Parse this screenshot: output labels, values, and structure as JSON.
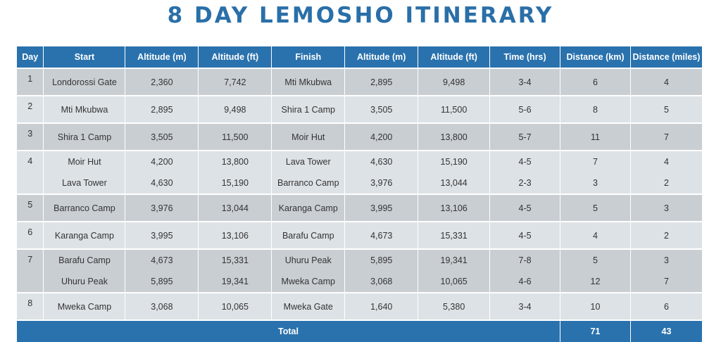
{
  "title": "8 DAY LEMOSHO ITINERARY",
  "headers": [
    "Day",
    "Start",
    "Altitude (m)",
    "Altitude (ft)",
    "Finish",
    "Altitude (m)",
    "Altitude (ft)",
    "Time (hrs)",
    "Distance (km)",
    "Distance (miles)"
  ],
  "rows": [
    {
      "day": "1",
      "cells": [
        "Londorossi Gate",
        "2,360",
        "7,742",
        "Mti Mkubwa",
        "2,895",
        "9,498",
        "3-4",
        "6",
        "4"
      ]
    },
    {
      "day": "2",
      "cells": [
        "Mti Mkubwa",
        "2,895",
        "9,498",
        "Shira 1 Camp",
        "3,505",
        "11,500",
        "5-6",
        "8",
        "5"
      ]
    },
    {
      "day": "3",
      "cells": [
        "Shira 1 Camp",
        "3,505",
        "11,500",
        "Moir Hut",
        "4,200",
        "13,800",
        "5-7",
        "11",
        "7"
      ]
    },
    {
      "day": "4",
      "cells": [
        "Moir Hut",
        "4,200",
        "13,800",
        "Lava Tower",
        "4,630",
        "15,190",
        "4-5",
        "7",
        "4"
      ]
    },
    {
      "day": "",
      "cells": [
        "Lava Tower",
        "4,630",
        "15,190",
        "Barranco Camp",
        "3,976",
        "13,044",
        "2-3",
        "3",
        "2"
      ]
    },
    {
      "day": "5",
      "cells": [
        "Barranco Camp",
        "3,976",
        "13,044",
        "Karanga Camp",
        "3,995",
        "13,106",
        "4-5",
        "5",
        "3"
      ]
    },
    {
      "day": "6",
      "cells": [
        "Karanga Camp",
        "3,995",
        "13,106",
        "Barafu Camp",
        "4,673",
        "15,331",
        "4-5",
        "4",
        "2"
      ]
    },
    {
      "day": "7",
      "cells": [
        "Barafu Camp",
        "4,673",
        "15,331",
        "Uhuru Peak",
        "5,895",
        "19,341",
        "7-8",
        "5",
        "3"
      ]
    },
    {
      "day": "",
      "cells": [
        "Uhuru Peak",
        "5,895",
        "19,341",
        "Mweka Camp",
        "3,068",
        "10,065",
        "4-6",
        "12",
        "7"
      ]
    },
    {
      "day": "8",
      "cells": [
        "Mweka Camp",
        "3,068",
        "10,065",
        "Mweka Gate",
        "1,640",
        "5,380",
        "3-4",
        "10",
        "6"
      ]
    }
  ],
  "total": {
    "label": "Total",
    "km": "71",
    "miles": "43"
  },
  "colors": {
    "header": "#2a72ad",
    "title": "#2a6fa8",
    "row_dark": "#c9ced3",
    "row_light": "#dde2e6"
  }
}
